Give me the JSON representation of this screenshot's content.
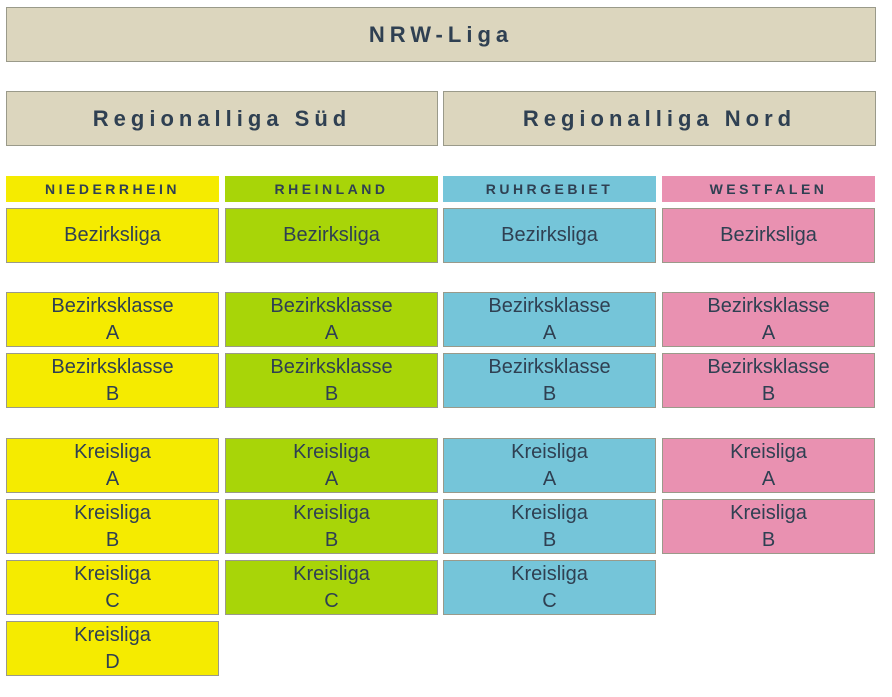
{
  "title": "NRW-Liga",
  "regions": [
    "Regionalliga Süd",
    "Regionalliga Nord"
  ],
  "districts": [
    {
      "name": "NIEDERRHEIN",
      "bezirksliga": "Bezirksliga",
      "bezirksklassen": [
        {
          "name": "Bezirksklasse",
          "level": "A"
        },
        {
          "name": "Bezirksklasse",
          "level": "B"
        }
      ],
      "kreisligen": [
        {
          "name": "Kreisliga",
          "level": "A"
        },
        {
          "name": "Kreisliga",
          "level": "B"
        },
        {
          "name": "Kreisliga",
          "level": "C"
        },
        {
          "name": "Kreisliga",
          "level": "D"
        }
      ]
    },
    {
      "name": "RHEINLAND",
      "bezirksliga": "Bezirksliga",
      "bezirksklassen": [
        {
          "name": "Bezirksklasse",
          "level": "A"
        },
        {
          "name": "Bezirksklasse",
          "level": "B"
        }
      ],
      "kreisligen": [
        {
          "name": "Kreisliga",
          "level": "A"
        },
        {
          "name": "Kreisliga",
          "level": "B"
        },
        {
          "name": "Kreisliga",
          "level": "C"
        }
      ]
    },
    {
      "name": "RUHRGEBIET",
      "bezirksliga": "Bezirksliga",
      "bezirksklassen": [
        {
          "name": "Bezirksklasse",
          "level": "A"
        },
        {
          "name": "Bezirksklasse",
          "level": "B"
        }
      ],
      "kreisligen": [
        {
          "name": "Kreisliga",
          "level": "A"
        },
        {
          "name": "Kreisliga",
          "level": "B"
        },
        {
          "name": "Kreisliga",
          "level": "C"
        }
      ]
    },
    {
      "name": "WESTFALEN",
      "bezirksliga": "Bezirksliga",
      "bezirksklassen": [
        {
          "name": "Bezirksklasse",
          "level": "A"
        },
        {
          "name": "Bezirksklasse",
          "level": "B"
        }
      ],
      "kreisligen": [
        {
          "name": "Kreisliga",
          "level": "A"
        },
        {
          "name": "Kreisliga",
          "level": "B"
        }
      ]
    }
  ]
}
